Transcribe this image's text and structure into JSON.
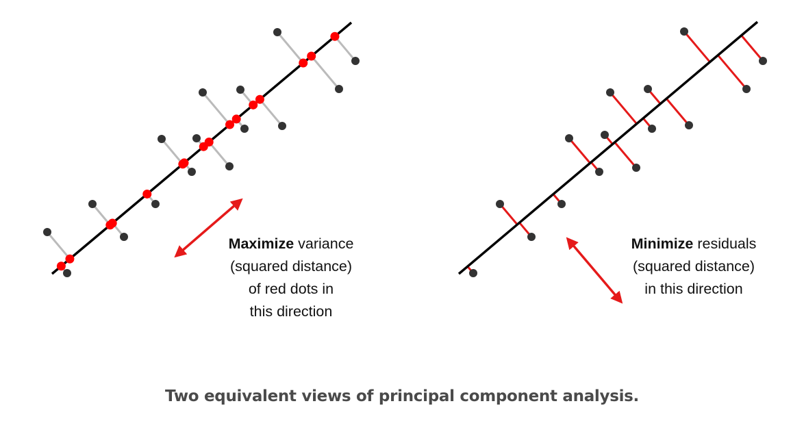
{
  "left_panel": {
    "emphasis": "Maximize",
    "line1_rest": " variance",
    "line2": "(squared distance)",
    "line3": "of red dots in",
    "line4": "this direction"
  },
  "right_panel": {
    "emphasis": "Minimize",
    "line1_rest": " residuals",
    "line2": "(squared distance)",
    "line3": "in this direction"
  },
  "caption": "Two equivalent views of principal component analysis.",
  "colors": {
    "data_point": "#333333",
    "projection": "#ff0000",
    "principal_line": "#000000",
    "left_connector": "#bbbbbb",
    "residual": "#e51a1a",
    "arrow": "#e51a1a"
  }
}
